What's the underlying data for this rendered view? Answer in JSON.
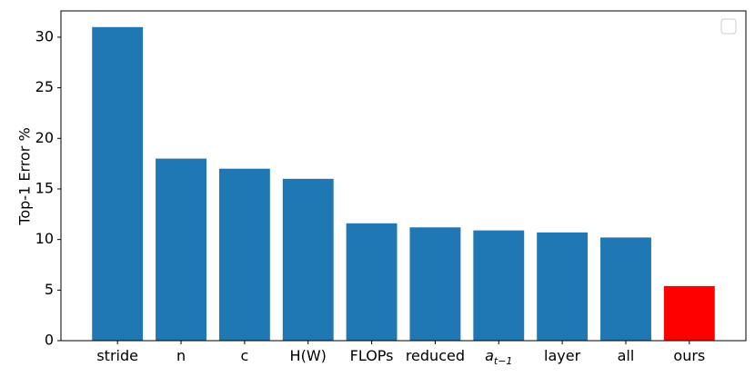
{
  "chart_data": {
    "type": "bar",
    "ylabel": "Top-1 Error %",
    "categories": [
      "stride",
      "n",
      "c",
      "H(W)",
      "FLOPs",
      "reduced",
      "a_{t−1}",
      "layer",
      "all",
      "ours"
    ],
    "values": [
      31,
      18,
      17,
      16,
      11.6,
      11.2,
      10.9,
      10.7,
      10.2,
      5.4
    ],
    "colors": [
      "#1f77b4",
      "#1f77b4",
      "#1f77b4",
      "#1f77b4",
      "#1f77b4",
      "#1f77b4",
      "#1f77b4",
      "#1f77b4",
      "#1f77b4",
      "#ff0000"
    ],
    "ylim": [
      0,
      32.6
    ],
    "yticks": [
      0,
      5,
      10,
      15,
      20,
      25,
      30
    ],
    "grid": false,
    "legend": "upper right"
  }
}
